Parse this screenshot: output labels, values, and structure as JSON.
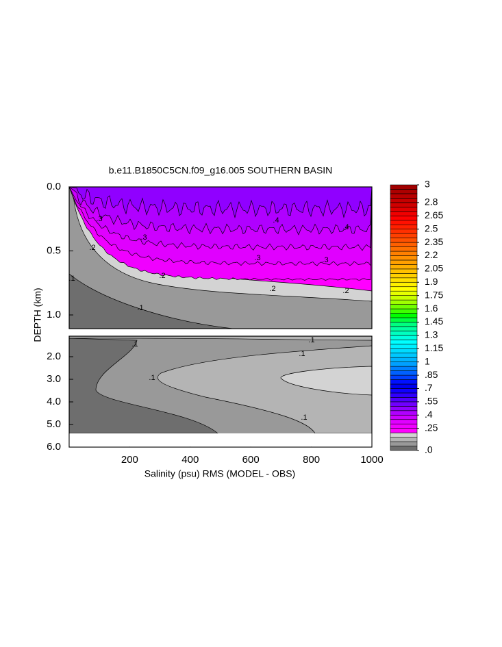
{
  "chart_data": {
    "type": "contour",
    "title": "b.e11.B1850C5CN.f09_g16.005 SOUTHERN BASIN",
    "x_label": "Salinity (psu) RMS (MODEL - OBS)",
    "y_label": "DEPTH (km)",
    "xlim": [
      0,
      1000
    ],
    "xticks": [
      200,
      400,
      600,
      800,
      1000
    ],
    "panels": [
      {
        "ylim": [
          0,
          1.1
        ],
        "yticks": [
          {
            "value": 0,
            "label": "0.0"
          },
          {
            "value": 0.5,
            "label": "0.5"
          },
          {
            "value": 1,
            "label": "1.0"
          }
        ]
      },
      {
        "ylim": [
          1.1,
          6
        ],
        "yticks": [
          {
            "value": 2,
            "label": "2.0"
          },
          {
            "value": 3,
            "label": "3.0"
          },
          {
            "value": 4,
            "label": "4.0"
          },
          {
            "value": 5,
            "label": "5.0"
          },
          {
            "value": 6,
            "label": "6.0"
          }
        ]
      }
    ],
    "colorbar": {
      "lim": [
        0,
        3
      ],
      "ticks": [
        {
          "value": 0,
          "label": ".0"
        },
        {
          "value": 0.25,
          "label": ".25"
        },
        {
          "value": 0.4,
          "label": ".4"
        },
        {
          "value": 0.55,
          "label": ".55"
        },
        {
          "value": 0.7,
          "label": ".7"
        },
        {
          "value": 0.85,
          "label": ".85"
        },
        1,
        1.15,
        1.3,
        1.45,
        1.6,
        1.75,
        1.9,
        2.05,
        2.2,
        2.35,
        2.5,
        2.65,
        2.8,
        3
      ],
      "colors": [
        "#6e6e6e",
        "#999999",
        "#b4b4b4",
        "#d3d3d3",
        "#ff00ff",
        "#f000ff",
        "#e000ff",
        "#cc00ff",
        "#b000ff",
        "#9000ff",
        "#7000ff",
        "#5000ff",
        "#3000ff",
        "#1000ff",
        "#0000f0",
        "#0010ff",
        "#0040ff",
        "#0060ff",
        "#0080ff",
        "#00a0ff",
        "#00b4ff",
        "#00c8ff",
        "#00dcff",
        "#00f0ff",
        "#00ffff",
        "#00ffe0",
        "#00ffc0",
        "#00ffa0",
        "#00ff80",
        "#00ff40",
        "#00ff00",
        "#40ff00",
        "#70ff00",
        "#a0ff00",
        "#c8ff00",
        "#e6ff00",
        "#ffff00",
        "#fff000",
        "#ffe000",
        "#ffd000",
        "#ffc000",
        "#ffb000",
        "#ffa000",
        "#ff9000",
        "#ff8000",
        "#ff7000",
        "#ff6000",
        "#ff5000",
        "#ff4000",
        "#ff3000",
        "#ff2000",
        "#ff1000",
        "#ff0000",
        "#f00000",
        "#e00000",
        "#d00000",
        "#c40000",
        "#b80000",
        "#ac0000",
        "#a00000"
      ]
    },
    "contour_labels": [
      {
        "value": 0.3,
        "label": ".3"
      },
      {
        "value": 0.3,
        "label": ".3"
      },
      {
        "value": 0.3,
        "label": ".3"
      },
      {
        "value": 0.3,
        "label": ".3"
      },
      {
        "value": 0.4,
        "label": ".4"
      },
      {
        "value": 0.4,
        "label": ".4"
      },
      {
        "value": 0.2,
        "label": ".2"
      },
      {
        "value": 0.2,
        "label": ".2"
      },
      {
        "value": 0.2,
        "label": ".2"
      },
      {
        "value": 0.2,
        "label": ".2"
      },
      {
        "value": 0.1,
        "label": ".1"
      },
      {
        "value": 0.1,
        "label": ".1"
      },
      {
        "value": 0.1,
        "label": ".1"
      },
      {
        "value": 0.1,
        "label": ".1"
      },
      {
        "value": 0.1,
        "label": ".1"
      },
      {
        "value": 0.1,
        "label": ".1"
      },
      {
        "value": 0.1,
        "label": ".1"
      }
    ]
  }
}
